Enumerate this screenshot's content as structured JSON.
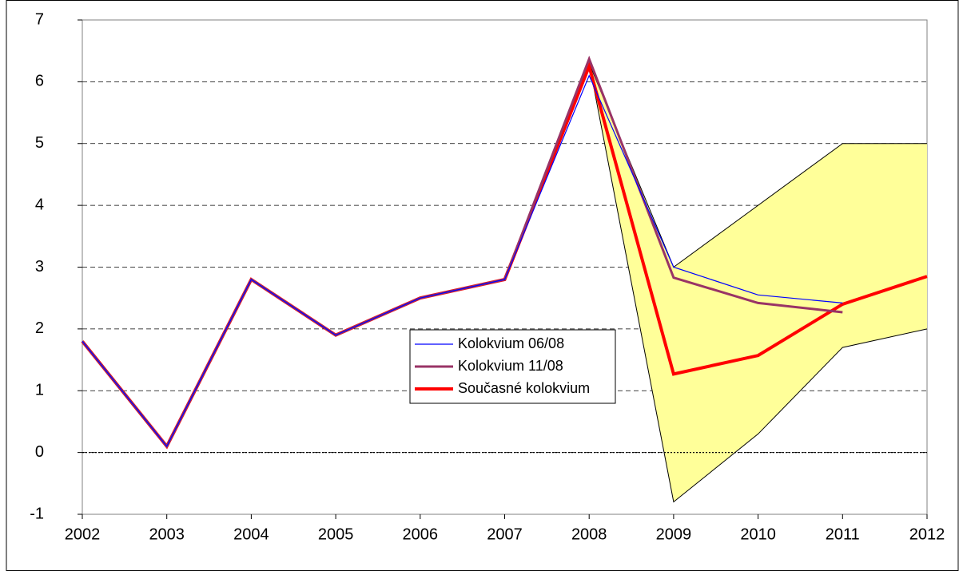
{
  "chart_data": {
    "type": "line",
    "x": [
      2002,
      2003,
      2004,
      2005,
      2006,
      2007,
      2008,
      2009,
      2010,
      2011,
      2012
    ],
    "xlim": [
      2002,
      2012
    ],
    "xticks": [
      2002,
      2003,
      2004,
      2005,
      2006,
      2007,
      2008,
      2009,
      2010,
      2011,
      2012
    ],
    "ylim": [
      -1,
      7
    ],
    "yticks": [
      -1,
      0,
      1,
      2,
      3,
      4,
      5,
      6,
      7
    ],
    "grid": true,
    "band": {
      "color": "#ffff99",
      "upper": [
        null,
        null,
        null,
        null,
        null,
        null,
        6.3,
        3.0,
        4.0,
        5.0,
        5.0
      ],
      "lower": [
        null,
        null,
        null,
        null,
        null,
        null,
        6.3,
        -0.8,
        0.3,
        1.7,
        2.0
      ]
    },
    "series": [
      {
        "name": "Současné kolokvium",
        "color": "#ff0000",
        "width": 4,
        "values": [
          1.8,
          0.1,
          2.8,
          1.9,
          2.5,
          2.8,
          6.25,
          1.27,
          1.57,
          2.4,
          2.85
        ]
      },
      {
        "name": "Kolokvium 11/08",
        "color": "#993366",
        "width": 3,
        "values": [
          1.8,
          0.1,
          2.8,
          1.9,
          2.5,
          2.8,
          6.37,
          2.83,
          2.42,
          2.27,
          null
        ]
      },
      {
        "name": "Kolokvium 06/08",
        "color": "#0000ff",
        "width": 1.2,
        "values": [
          1.8,
          0.1,
          2.8,
          1.9,
          2.5,
          2.8,
          6.1,
          3.0,
          2.55,
          2.42,
          null
        ]
      }
    ]
  }
}
